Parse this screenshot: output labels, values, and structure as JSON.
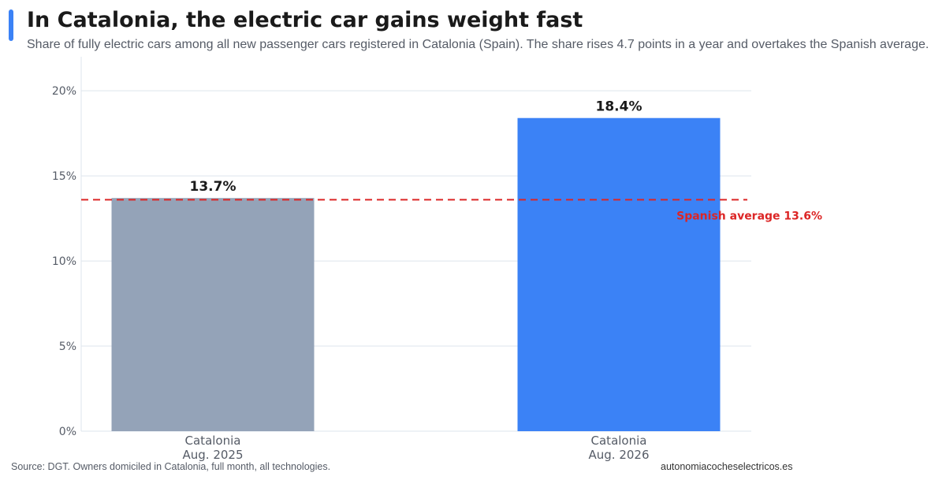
{
  "header": {
    "title": "In Catalonia, the electric car gains weight fast",
    "subtitle": "Share of fully electric cars among all new passenger cars registered in Catalonia (Spain). The share rises 4.7 points in a year and overtakes the Spanish average."
  },
  "footer": {
    "source": "Source: DGT. Owners domiciled in Catalonia, full month, all technologies.",
    "site": "autonomiacocheselectricos.es"
  },
  "colors": {
    "accent": "#3b82f6",
    "bar_2025": "#94a3b8",
    "bar_2026": "#3b82f6",
    "reference": "#dc2626",
    "grid": "#dde5ec",
    "axis_text": "#555b66",
    "label_text": "#1a1a1a"
  },
  "chart_data": {
    "type": "bar",
    "categories": [
      [
        "Catalonia",
        "Aug. 2025"
      ],
      [
        "Catalonia",
        "Aug. 2026"
      ]
    ],
    "values": [
      13.7,
      18.4
    ],
    "data_labels": [
      "13.7%",
      "18.4%"
    ],
    "ylim": [
      0,
      22
    ],
    "yticks": [
      0,
      5,
      10,
      15,
      20
    ],
    "ytick_labels": [
      "0%",
      "5%",
      "10%",
      "15%",
      "20%"
    ],
    "grid": true,
    "reference_line": {
      "value": 13.6,
      "label": "Spanish average 13.6%"
    }
  }
}
